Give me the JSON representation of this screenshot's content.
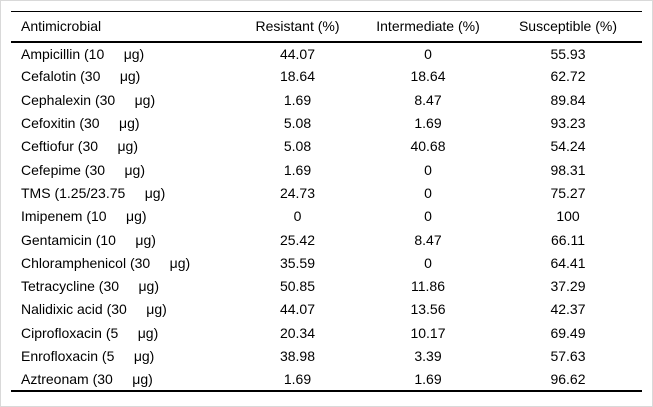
{
  "table": {
    "columns": [
      {
        "label": "Antimicrobial"
      },
      {
        "label": "Resistant (%)"
      },
      {
        "label": "Intermediate (%)"
      },
      {
        "label": "Susceptible (%)"
      }
    ],
    "rows": [
      {
        "antimicrobial": "Ampicillin (10     μg)",
        "resistant": "44.07",
        "intermediate": "0",
        "susceptible": "55.93"
      },
      {
        "antimicrobial": "Cefalotin (30     μg)",
        "resistant": "18.64",
        "intermediate": "18.64",
        "susceptible": "62.72"
      },
      {
        "antimicrobial": "Cephalexin (30     μg)",
        "resistant": "1.69",
        "intermediate": "8.47",
        "susceptible": "89.84"
      },
      {
        "antimicrobial": "Cefoxitin (30     μg)",
        "resistant": "5.08",
        "intermediate": "1.69",
        "susceptible": "93.23"
      },
      {
        "antimicrobial": "Ceftiofur (30     μg)",
        "resistant": "5.08",
        "intermediate": "40.68",
        "susceptible": "54.24"
      },
      {
        "antimicrobial": "Cefepime (30     μg)",
        "resistant": "1.69",
        "intermediate": "0",
        "susceptible": "98.31"
      },
      {
        "antimicrobial": "TMS (1.25/23.75     μg)",
        "resistant": "24.73",
        "intermediate": "0",
        "susceptible": "75.27"
      },
      {
        "antimicrobial": "Imipenem (10     μg)",
        "resistant": "0",
        "intermediate": "0",
        "susceptible": "100"
      },
      {
        "antimicrobial": "Gentamicin (10     μg)",
        "resistant": "25.42",
        "intermediate": "8.47",
        "susceptible": "66.11"
      },
      {
        "antimicrobial": "Chloramphenicol (30     μg)",
        "resistant": "35.59",
        "intermediate": "0",
        "susceptible": "64.41"
      },
      {
        "antimicrobial": "Tetracycline (30     μg)",
        "resistant": "50.85",
        "intermediate": "11.86",
        "susceptible": "37.29"
      },
      {
        "antimicrobial": "Nalidixic acid (30     μg)",
        "resistant": "44.07",
        "intermediate": "13.56",
        "susceptible": "42.37"
      },
      {
        "antimicrobial": "Ciprofloxacin (5     μg)",
        "resistant": "20.34",
        "intermediate": "10.17",
        "susceptible": "69.49"
      },
      {
        "antimicrobial": "Enrofloxacin (5     μg)",
        "resistant": "38.98",
        "intermediate": "3.39",
        "susceptible": "57.63"
      },
      {
        "antimicrobial": "Aztreonam (30     μg)",
        "resistant": "1.69",
        "intermediate": "1.69",
        "susceptible": "96.62"
      }
    ]
  },
  "chart_data": {
    "type": "table",
    "columns": [
      "Antimicrobial",
      "Resistant (%)",
      "Intermediate (%)",
      "Susceptible (%)"
    ],
    "rows": [
      [
        "Ampicillin (10 μg)",
        44.07,
        0,
        55.93
      ],
      [
        "Cefalotin (30 μg)",
        18.64,
        18.64,
        62.72
      ],
      [
        "Cephalexin (30 μg)",
        1.69,
        8.47,
        89.84
      ],
      [
        "Cefoxitin (30 μg)",
        5.08,
        1.69,
        93.23
      ],
      [
        "Ceftiofur (30 μg)",
        5.08,
        40.68,
        54.24
      ],
      [
        "Cefepime (30 μg)",
        1.69,
        0,
        98.31
      ],
      [
        "TMS (1.25/23.75 μg)",
        24.73,
        0,
        75.27
      ],
      [
        "Imipenem (10 μg)",
        0,
        0,
        100
      ],
      [
        "Gentamicin (10 μg)",
        25.42,
        8.47,
        66.11
      ],
      [
        "Chloramphenicol (30 μg)",
        35.59,
        0,
        64.41
      ],
      [
        "Tetracycline (30 μg)",
        50.85,
        11.86,
        37.29
      ],
      [
        "Nalidixic acid (30 μg)",
        44.07,
        13.56,
        42.37
      ],
      [
        "Ciprofloxacin (5 μg)",
        20.34,
        10.17,
        69.49
      ],
      [
        "Enrofloxacin (5 μg)",
        38.98,
        3.39,
        57.63
      ],
      [
        "Aztreonam (30 μg)",
        1.69,
        1.69,
        96.62
      ]
    ]
  },
  "colors": {
    "text": "#000000",
    "rule": "#000000",
    "background": "#ffffff",
    "frame_border": "#d9d9d9"
  }
}
